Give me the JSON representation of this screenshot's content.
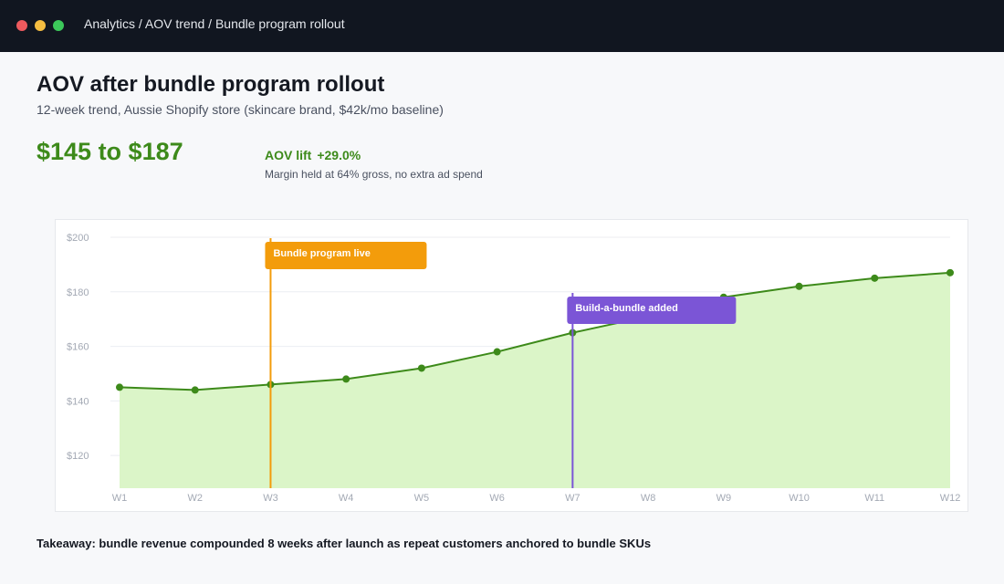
{
  "window": {
    "breadcrumb": "Analytics / AOV trend / Bundle program rollout"
  },
  "header": {
    "title": "AOV after bundle program rollout",
    "subtitle": "12-week trend, Aussie Shopify store (skincare brand, $42k/mo baseline)"
  },
  "summary": {
    "headline": "$145 to $187",
    "lift_label": "AOV lift",
    "lift_value": "+29.0%",
    "margin_note": "Margin held at 64% gross, no extra ad spend"
  },
  "colors": {
    "line": "#3d8a1a",
    "area": "#dbf5c8",
    "point": "#3d8a1a",
    "grid": "#eceef2",
    "annotation_1": "#f39c0b",
    "annotation_2": "#7b55d6"
  },
  "chart_data": {
    "type": "area",
    "title": "",
    "xlabel": "",
    "ylabel": "",
    "categories": [
      "W1",
      "W2",
      "W3",
      "W4",
      "W5",
      "W6",
      "W7",
      "W8",
      "W9",
      "W10",
      "W11",
      "W12"
    ],
    "series": [
      {
        "values": [
          145,
          144,
          146,
          148,
          152,
          158,
          165,
          171,
          178,
          182,
          185,
          187
        ]
      }
    ],
    "yticks": [
      120,
      140,
      160,
      180,
      200
    ],
    "ytick_labels": [
      "$120",
      "$140",
      "$160",
      "$180",
      "$200"
    ],
    "ylim": [
      108,
      200
    ],
    "grid": true,
    "annotations": [
      {
        "label": "Bundle program live",
        "at": "W3",
        "color": "#f39c0b"
      },
      {
        "label": "Build-a-bundle added",
        "at": "W7",
        "color": "#7b55d6"
      }
    ]
  },
  "footer": {
    "takeaway": "Takeaway: bundle revenue compounded 8 weeks after launch as repeat customers anchored to bundle SKUs"
  }
}
